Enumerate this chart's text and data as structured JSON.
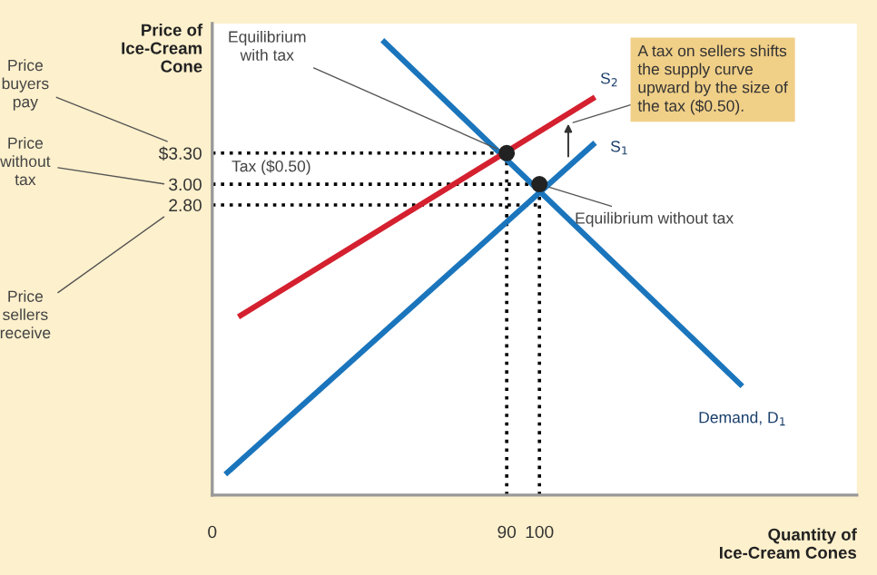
{
  "chart_data": {
    "type": "line",
    "xlabel": "Quantity of\nIce-Cream Cones",
    "ylabel": "Price of\nIce-Cream\nCone",
    "xlim": [
      0,
      197
    ],
    "ylim": [
      0,
      4.55
    ],
    "xticks": [
      0,
      90,
      100
    ],
    "yticks": [
      {
        "value": 3.3,
        "label": "$3.30"
      },
      {
        "value": 3.0,
        "label": "3.00"
      },
      {
        "value": 2.8,
        "label": "2.80"
      }
    ],
    "grid": false,
    "legend": false,
    "series": [
      {
        "name": "Demand, D$_{1}$",
        "color": "#1a75bc",
        "x": [
          52,
          162
        ],
        "values": [
          4.39,
          1.05
        ]
      },
      {
        "name": "S$_{1}$",
        "color": "#1a75bc",
        "x": [
          4,
          117
        ],
        "values": [
          0.2,
          3.4
        ]
      },
      {
        "name": "S$_{2}$",
        "color": "#d4202f",
        "x": [
          8,
          117
        ],
        "values": [
          1.72,
          3.84
        ]
      },
      {
        "type": "line",
        "line_style": "dotted",
        "color": "#000000",
        "x": [
          0,
          90
        ],
        "values": [
          3.3,
          3.3
        ]
      },
      {
        "type": "line",
        "line_style": "dotted",
        "color": "#000000",
        "x": [
          0,
          100
        ],
        "values": [
          3.0,
          3.0
        ]
      },
      {
        "type": "line",
        "line_style": "dotted",
        "color": "#000000",
        "x": [
          0,
          100
        ],
        "values": [
          2.8,
          2.8
        ]
      },
      {
        "type": "line",
        "line_style": "dotted",
        "color": "#000000",
        "x": [
          90,
          90
        ],
        "values": [
          0,
          3.3
        ]
      },
      {
        "type": "line",
        "line_style": "dotted",
        "color": "#000000",
        "x": [
          100,
          100
        ],
        "values": [
          0,
          3.0
        ]
      },
      {
        "type": "scatter",
        "marker": "circle",
        "color": "#222222",
        "x": [
          90,
          100
        ],
        "values": [
          3.3,
          3.0
        ]
      }
    ],
    "annotations": [
      {
        "text": "Equilibrium\nwith tax",
        "x": 90,
        "y": 3.3
      },
      {
        "text": "Equilibrium without tax",
        "x": 100,
        "y": 3.0
      },
      "Tax ($0.50)",
      "A tax on sellers shifts\nthe supply curve\nupward by the size of\nthe tax ($0.50).",
      "Price\nbuyers\npay",
      "Price\nwithout\ntax",
      "Price\nsellers\nreceive"
    ]
  }
}
